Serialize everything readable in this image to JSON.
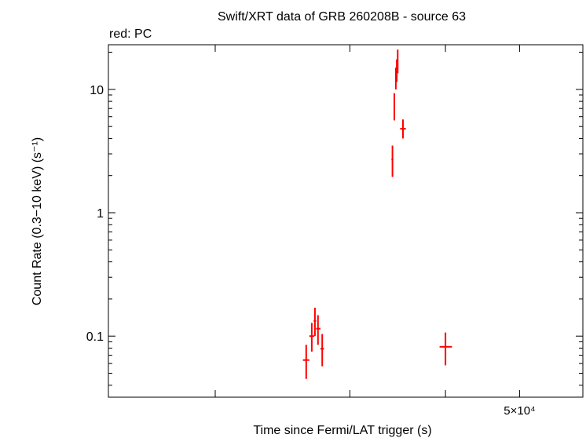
{
  "chart_data": {
    "type": "scatter",
    "title": "Swift/XRT data of GRB 260208B - source 63",
    "subtitle": "red: PC",
    "xlabel": "Time since Fermi/LAT trigger (s)",
    "ylabel": "Count Rate (0.3−10 keV) (s⁻¹)",
    "xscale": "log",
    "yscale": "log",
    "xlim": [
      14500,
      60500
    ],
    "ylim": [
      0.032,
      23
    ],
    "x_tick_values": [
      20000,
      30000,
      40000,
      50000
    ],
    "x_tick_labels": [
      {
        "value": 50000,
        "label": "5×10⁴"
      }
    ],
    "y_ticks": [
      {
        "value": 0.1,
        "label": "0.1"
      },
      {
        "value": 1,
        "label": "1"
      },
      {
        "value": 10,
        "label": "10"
      }
    ],
    "grid": false,
    "series_color": "#ff0000",
    "series": [
      {
        "points": [
          {
            "x": 26300,
            "x_lo": 26050,
            "x_hi": 26550,
            "y": 0.064,
            "y_lo": 0.045,
            "y_hi": 0.085
          },
          {
            "x": 26750,
            "x_lo": 26550,
            "x_hi": 26950,
            "y": 0.1,
            "y_lo": 0.075,
            "y_hi": 0.128
          },
          {
            "x": 27000,
            "x_lo": 26900,
            "x_hi": 27100,
            "y": 0.133,
            "y_lo": 0.1,
            "y_hi": 0.17
          },
          {
            "x": 27250,
            "x_lo": 27100,
            "x_hi": 27450,
            "y": 0.115,
            "y_lo": 0.085,
            "y_hi": 0.148
          },
          {
            "x": 27600,
            "x_lo": 27450,
            "x_hi": 27750,
            "y": 0.079,
            "y_lo": 0.057,
            "y_hi": 0.104
          },
          {
            "x": 34100,
            "x_lo": 34000,
            "x_hi": 34200,
            "y": 2.7,
            "y_lo": 1.95,
            "y_hi": 3.5
          },
          {
            "x": 34300,
            "x_lo": 34250,
            "x_hi": 34350,
            "y": 7.4,
            "y_lo": 5.6,
            "y_hi": 9.3
          },
          {
            "x": 34450,
            "x_lo": 34400,
            "x_hi": 34500,
            "y": 12.5,
            "y_lo": 10.0,
            "y_hi": 15.0
          },
          {
            "x": 34550,
            "x_lo": 34500,
            "x_hi": 34600,
            "y": 14.5,
            "y_lo": 11.5,
            "y_hi": 17.5
          },
          {
            "x": 34650,
            "x_lo": 34600,
            "x_hi": 34700,
            "y": 17.0,
            "y_lo": 13.5,
            "y_hi": 21.0
          },
          {
            "x": 35200,
            "x_lo": 34900,
            "x_hi": 35500,
            "y": 4.8,
            "y_lo": 4.0,
            "y_hi": 5.7
          },
          {
            "x": 40000,
            "x_lo": 39300,
            "x_hi": 40800,
            "y": 0.082,
            "y_lo": 0.058,
            "y_hi": 0.107
          }
        ]
      }
    ]
  }
}
